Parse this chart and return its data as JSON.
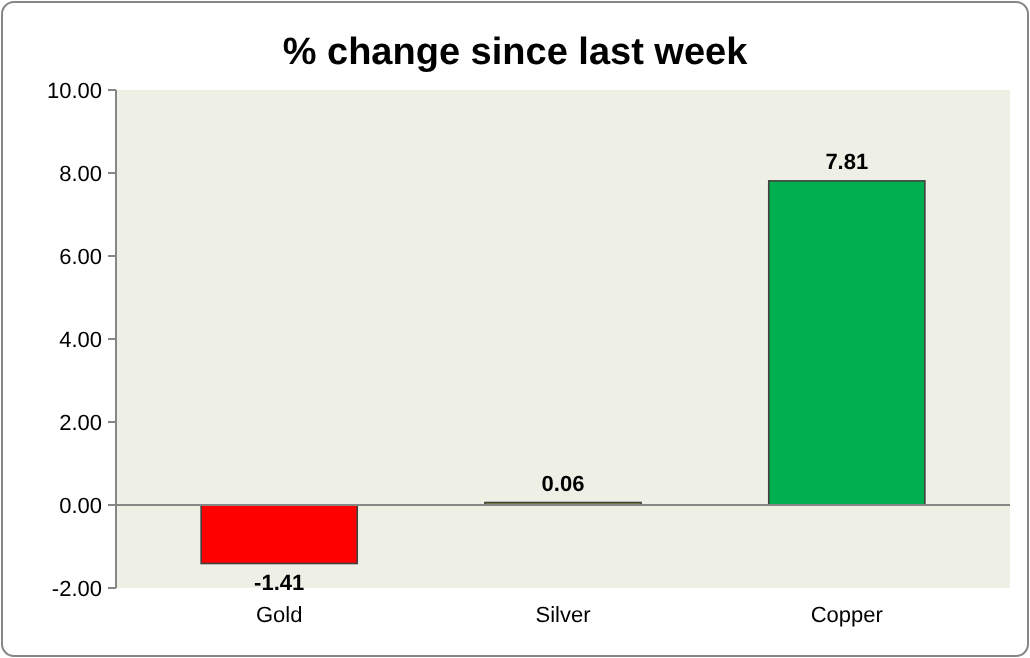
{
  "chart_data": {
    "type": "bar",
    "title": "% change since last week",
    "categories": [
      "Gold",
      "Silver",
      "Copper"
    ],
    "values": [
      -1.41,
      0.06,
      7.81
    ],
    "colors": [
      "#ff0000",
      "#8c8c3c",
      "#00b050"
    ],
    "data_labels": true,
    "ylim": [
      -2,
      10
    ],
    "yticks": [
      {
        "value": -2,
        "label": "-2.00"
      },
      {
        "value": 0,
        "label": "0.00"
      },
      {
        "value": 2,
        "label": "2.00"
      },
      {
        "value": 4,
        "label": "4.00"
      },
      {
        "value": 6,
        "label": "6.00"
      },
      {
        "value": 8,
        "label": "8.00"
      },
      {
        "value": 10,
        "label": "10.00"
      }
    ]
  }
}
